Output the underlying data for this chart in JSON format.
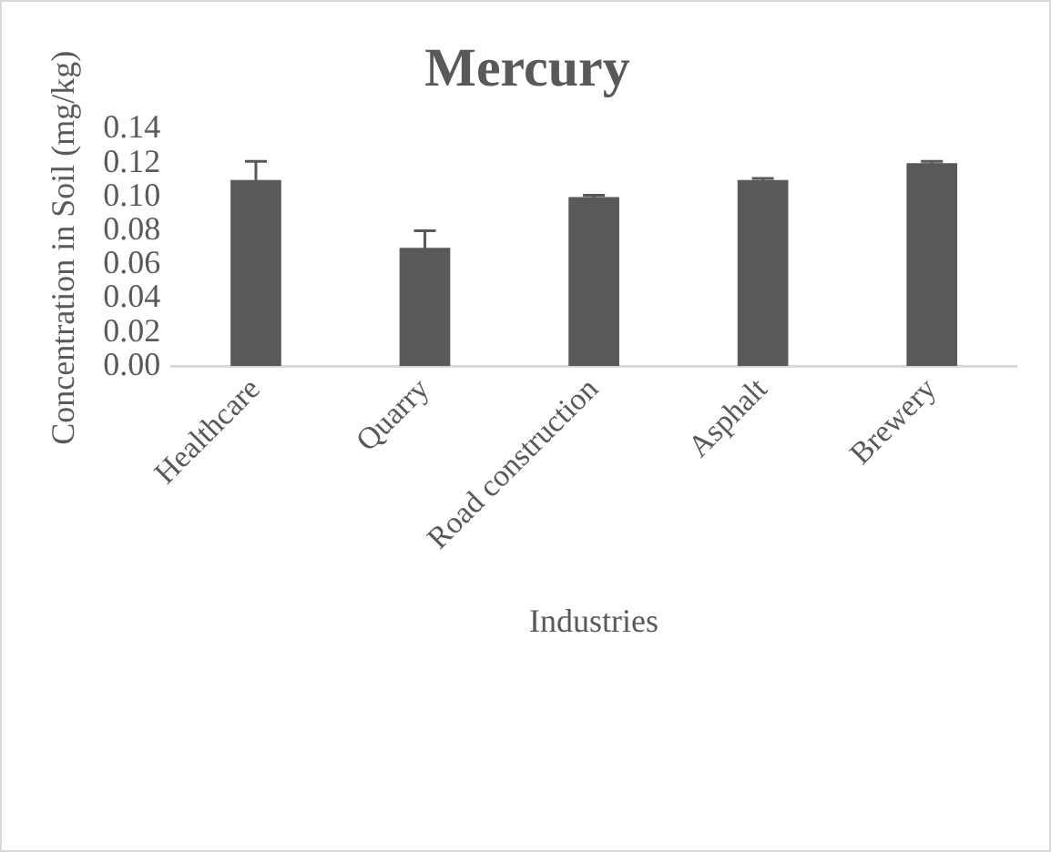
{
  "chart_data": {
    "type": "bar",
    "title": "Mercury",
    "xlabel": "Industries",
    "ylabel": "Concentration in Soil (mg/kg)",
    "categories": [
      "Healthcare",
      "Quarry",
      "Road construction",
      "Asphalt",
      "Brewery"
    ],
    "values": [
      0.11,
      0.07,
      0.1,
      0.11,
      0.12
    ],
    "errors": [
      0.011,
      0.01,
      0.001,
      0.001,
      0.001
    ],
    "color": "#595959",
    "ylim": [
      0,
      0.14
    ],
    "yticks": [
      {
        "value": 0,
        "label": "0.00"
      },
      {
        "value": 0.02,
        "label": "0.02"
      },
      {
        "value": 0.04,
        "label": "0.04"
      },
      {
        "value": 0.06,
        "label": "0.06"
      },
      {
        "value": 0.08,
        "label": "0.08"
      },
      {
        "value": 0.1,
        "label": "0.10"
      },
      {
        "value": 0.12,
        "label": "0.12"
      },
      {
        "value": 0.14,
        "label": "0.14"
      }
    ],
    "grid": false,
    "legend": false
  }
}
